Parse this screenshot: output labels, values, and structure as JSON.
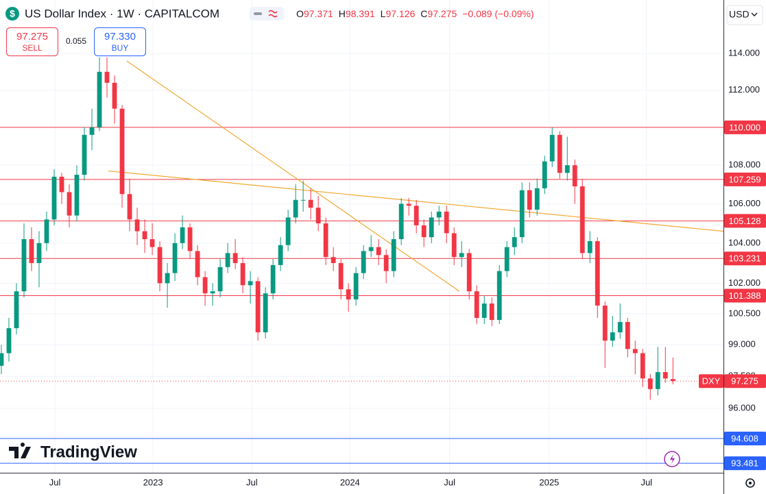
{
  "header": {
    "symbol_icon": "$",
    "title": "US Dollar Index · 1W · CAPITALCOM",
    "ohlc_keys": [
      "O",
      "H",
      "L",
      "C"
    ],
    "change": "−0.089 (−0.09%)",
    "currency": "USD",
    "logo": "TradingView"
  },
  "trade": {
    "sell_price": "97.275",
    "sell": "SELL",
    "spread": "0.055",
    "buy_price": "97.330",
    "buy": "BUY"
  },
  "chart_data": {
    "type": "candlestick",
    "symbol": "DXY",
    "up_color": "#089981",
    "down_color": "#f23645",
    "log_scale": true,
    "grid": true,
    "candles": [
      [
        98.0,
        99.0,
        97.6,
        98.6
      ],
      [
        98.6,
        100.3,
        98.2,
        99.8
      ],
      [
        99.8,
        102.0,
        99.5,
        101.6
      ],
      [
        101.6,
        105.0,
        101.3,
        104.2
      ],
      [
        104.2,
        104.8,
        102.6,
        103.0
      ],
      [
        103.0,
        104.6,
        101.8,
        104.0
      ],
      [
        104.0,
        105.6,
        103.6,
        105.2
      ],
      [
        105.2,
        107.8,
        104.9,
        107.4
      ],
      [
        107.4,
        107.6,
        106.0,
        106.6
      ],
      [
        106.6,
        107.0,
        104.8,
        105.4
      ],
      [
        105.4,
        108.0,
        105.1,
        107.5
      ],
      [
        107.5,
        110.0,
        107.2,
        109.6
      ],
      [
        109.6,
        111.0,
        108.8,
        110.0
      ],
      [
        110.0,
        113.8,
        109.8,
        113.0
      ],
      [
        113.0,
        113.8,
        111.6,
        112.4
      ],
      [
        112.4,
        112.8,
        110.2,
        111.0
      ],
      [
        111.0,
        111.2,
        105.8,
        106.5
      ],
      [
        106.5,
        107.3,
        104.6,
        105.2
      ],
      [
        105.2,
        105.8,
        103.9,
        104.6
      ],
      [
        104.6,
        105.2,
        103.5,
        104.2
      ],
      [
        104.2,
        105.0,
        103.4,
        103.8
      ],
      [
        103.8,
        104.1,
        101.6,
        102.0
      ],
      [
        102.0,
        103.0,
        100.8,
        102.5
      ],
      [
        102.5,
        104.5,
        102.1,
        104.0
      ],
      [
        104.0,
        105.4,
        103.7,
        104.8
      ],
      [
        104.8,
        105.0,
        103.2,
        103.6
      ],
      [
        103.6,
        103.9,
        101.9,
        102.3
      ],
      [
        102.3,
        102.6,
        100.9,
        101.5
      ],
      [
        101.5,
        102.0,
        100.9,
        101.6
      ],
      [
        101.6,
        103.2,
        101.3,
        102.8
      ],
      [
        102.8,
        104.0,
        102.5,
        103.5
      ],
      [
        103.5,
        104.2,
        102.7,
        103.0
      ],
      [
        103.0,
        103.3,
        101.5,
        101.9
      ],
      [
        101.9,
        102.6,
        101.0,
        102.1
      ],
      [
        102.1,
        102.3,
        99.2,
        99.6
      ],
      [
        99.6,
        101.8,
        99.3,
        101.5
      ],
      [
        101.5,
        103.2,
        101.2,
        102.9
      ],
      [
        102.9,
        104.3,
        102.6,
        103.9
      ],
      [
        103.9,
        105.7,
        103.6,
        105.3
      ],
      [
        105.3,
        107.0,
        105.0,
        106.2
      ],
      [
        106.2,
        107.2,
        105.6,
        106.2
      ],
      [
        106.2,
        106.8,
        105.2,
        105.8
      ],
      [
        105.8,
        106.4,
        104.6,
        105.0
      ],
      [
        105.0,
        105.3,
        102.9,
        103.3
      ],
      [
        103.3,
        103.8,
        102.6,
        103.0
      ],
      [
        103.0,
        103.2,
        101.2,
        101.7
      ],
      [
        101.7,
        102.0,
        100.6,
        101.2
      ],
      [
        101.2,
        102.8,
        100.9,
        102.5
      ],
      [
        102.5,
        103.9,
        102.2,
        103.6
      ],
      [
        103.6,
        104.4,
        103.3,
        103.8
      ],
      [
        103.8,
        104.2,
        102.9,
        103.4
      ],
      [
        103.4,
        103.7,
        102.0,
        102.6
      ],
      [
        102.6,
        104.6,
        102.3,
        104.2
      ],
      [
        104.2,
        106.3,
        103.9,
        106.0
      ],
      [
        106.0,
        106.3,
        105.4,
        105.9
      ],
      [
        105.9,
        106.2,
        104.5,
        104.9
      ],
      [
        104.9,
        105.2,
        103.8,
        104.3
      ],
      [
        104.3,
        105.6,
        104.0,
        105.3
      ],
      [
        105.3,
        105.9,
        104.9,
        105.6
      ],
      [
        105.6,
        105.9,
        104.0,
        104.5
      ],
      [
        104.5,
        104.8,
        102.9,
        103.3
      ],
      [
        103.3,
        104.1,
        102.8,
        103.5
      ],
      [
        103.5,
        103.7,
        101.2,
        101.6
      ],
      [
        101.6,
        101.9,
        100.0,
        100.3
      ],
      [
        100.3,
        101.4,
        100.0,
        101.0
      ],
      [
        101.0,
        101.3,
        99.9,
        100.2
      ],
      [
        100.2,
        102.9,
        100.0,
        102.6
      ],
      [
        102.6,
        104.1,
        102.3,
        103.8
      ],
      [
        103.8,
        104.8,
        103.4,
        104.3
      ],
      [
        104.3,
        107.1,
        104.0,
        106.7
      ],
      [
        106.7,
        107.1,
        105.3,
        105.7
      ],
      [
        105.7,
        107.3,
        105.4,
        106.8
      ],
      [
        106.8,
        108.5,
        106.5,
        108.2
      ],
      [
        108.2,
        110.0,
        107.9,
        109.6
      ],
      [
        109.6,
        109.8,
        107.3,
        107.6
      ],
      [
        107.6,
        109.5,
        107.2,
        108.0
      ],
      [
        108.0,
        108.3,
        106.0,
        106.9
      ],
      [
        106.9,
        107.3,
        103.2,
        103.5
      ],
      [
        103.5,
        104.6,
        103.0,
        104.1
      ],
      [
        104.1,
        104.3,
        100.3,
        100.9
      ],
      [
        100.9,
        101.1,
        97.9,
        99.2
      ],
      [
        99.2,
        100.4,
        98.9,
        99.6
      ],
      [
        99.6,
        101.0,
        99.3,
        100.1
      ],
      [
        100.1,
        100.3,
        98.4,
        98.8
      ],
      [
        98.8,
        99.2,
        97.6,
        98.6
      ],
      [
        98.6,
        98.8,
        97.0,
        97.4
      ],
      [
        97.4,
        97.6,
        96.4,
        96.9
      ],
      [
        96.9,
        98.9,
        96.6,
        97.7
      ],
      [
        97.7,
        98.9,
        97.2,
        97.4
      ],
      [
        97.371,
        98.391,
        97.126,
        97.275
      ]
    ],
    "xlim": [
      -0.18,
      95.7
    ],
    "xticks": [
      {
        "value": 7.1,
        "label": "Jul"
      },
      {
        "value": 20.1,
        "label": "2023"
      },
      {
        "value": 33.2,
        "label": "Jul"
      },
      {
        "value": 46.2,
        "label": "2024"
      },
      {
        "value": 59.4,
        "label": "Jul"
      },
      {
        "value": 72.6,
        "label": "2025"
      },
      {
        "value": 85.5,
        "label": "Jul"
      }
    ],
    "ylim": [
      93.05,
      117.0
    ],
    "yticks": [
      {
        "value": 96,
        "label": "96.000"
      },
      {
        "value": 97.5,
        "label": "97.500"
      },
      {
        "value": 99,
        "label": "99.000"
      },
      {
        "value": 100.5,
        "label": "100.500"
      },
      {
        "value": 102,
        "label": "102.000"
      },
      {
        "value": 104,
        "label": "104.000"
      },
      {
        "value": 106,
        "label": "106.000"
      },
      {
        "value": 108,
        "label": "108.000"
      },
      {
        "value": 112,
        "label": "112.000"
      },
      {
        "value": 114,
        "label": "114.000"
      }
    ],
    "levels": [
      {
        "value": 110,
        "label": "110.000",
        "color": "#f23645"
      },
      {
        "value": 107.259,
        "label": "107.259",
        "color": "#f23645"
      },
      {
        "value": 105.128,
        "label": "105.128",
        "color": "#f23645"
      },
      {
        "value": 103.231,
        "label": "103.231",
        "color": "#f23645"
      },
      {
        "value": 101.388,
        "label": "101.388",
        "color": "#f23645"
      },
      {
        "value": 94.608,
        "label": "94.608",
        "color": "#2962ff"
      },
      {
        "value": 93.481,
        "label": "93.481",
        "color": "#2962ff"
      }
    ],
    "trendlines": [
      {
        "start": [
          16.6,
          113.6
        ],
        "end": [
          60.7,
          101.6
        ],
        "color": "#f0a830"
      },
      {
        "start": [
          14.2,
          107.7
        ],
        "end": [
          95.7,
          104.6
        ],
        "color": "#f0a830"
      }
    ]
  }
}
